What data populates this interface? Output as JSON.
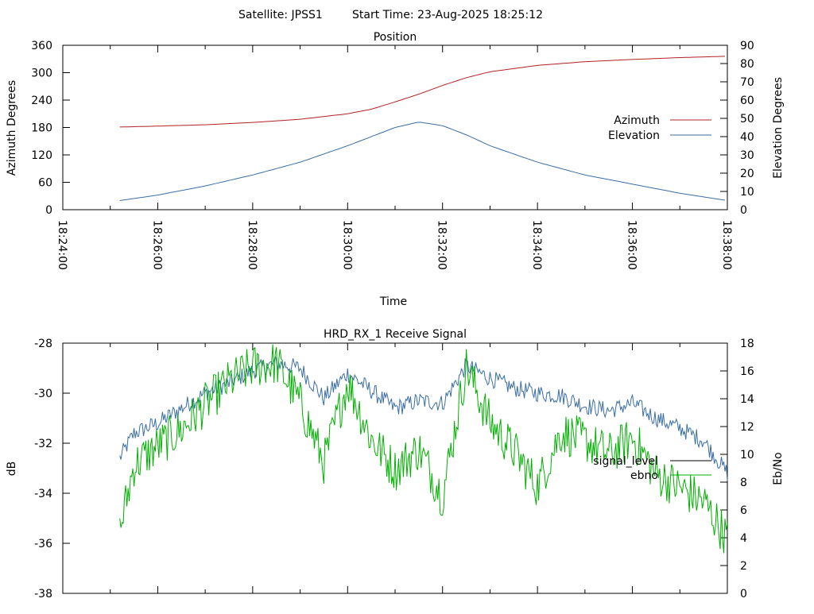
{
  "header": {
    "satellite": "Satellite: JPSS1",
    "start_time": "Start Time: 23-Aug-2025 18:25:12"
  },
  "chart_data": [
    {
      "type": "line",
      "title": "Position",
      "xlabel": "Time",
      "ylabel": "Azimuth Degrees",
      "y2label": "Elevation Degrees",
      "xlim": [
        "18:24:00",
        "18:38:00"
      ],
      "ylim": [
        0,
        360
      ],
      "y2lim": [
        0,
        90
      ],
      "x_ticks": [
        "18:24:00",
        "18:26:00",
        "18:28:00",
        "18:30:00",
        "18:32:00",
        "18:34:00",
        "18:36:00",
        "18:38:00"
      ],
      "y_ticks": [
        "0",
        "60",
        "120",
        "180",
        "240",
        "300",
        "360"
      ],
      "y2_ticks": [
        "0",
        "10",
        "20",
        "30",
        "40",
        "50",
        "60",
        "70",
        "80",
        "90"
      ],
      "grid": false,
      "legend_position": "right",
      "series": [
        {
          "name": "Azimuth",
          "color": "#b22222",
          "axis": "y",
          "x": [
            "18:25:12",
            "18:26:00",
            "18:27:00",
            "18:28:00",
            "18:29:00",
            "18:30:00",
            "18:30:30",
            "18:31:00",
            "18:31:30",
            "18:32:00",
            "18:32:30",
            "18:33:00",
            "18:34:00",
            "18:35:00",
            "18:36:00",
            "18:37:00",
            "18:38:00"
          ],
          "values": [
            181,
            183,
            186,
            191,
            198,
            210,
            220,
            236,
            253,
            272,
            289,
            302,
            316,
            324,
            329,
            333,
            336
          ]
        },
        {
          "name": "Elevation",
          "color": "#3a6ea5",
          "axis": "y2",
          "x": [
            "18:25:12",
            "18:26:00",
            "18:27:00",
            "18:28:00",
            "18:29:00",
            "18:30:00",
            "18:30:30",
            "18:31:00",
            "18:31:30",
            "18:32:00",
            "18:32:30",
            "18:33:00",
            "18:34:00",
            "18:35:00",
            "18:36:00",
            "18:37:00",
            "18:38:00"
          ],
          "values": [
            5,
            8,
            13,
            19,
            26,
            35,
            40,
            45,
            48,
            46,
            41,
            35,
            26,
            19,
            14,
            9,
            5
          ]
        }
      ]
    },
    {
      "type": "line",
      "title": "HRD_RX_1 Receive Signal",
      "xlabel": "",
      "ylabel": "dB",
      "y2label": "Eb/No",
      "xlim": [
        "18:24:00",
        "18:38:00"
      ],
      "ylim": [
        -38,
        -28
      ],
      "y2lim": [
        0,
        18
      ],
      "y_ticks": [
        "-38",
        "-36",
        "-34",
        "-32",
        "-30",
        "-28"
      ],
      "y2_ticks": [
        "0",
        "2",
        "4",
        "6",
        "8",
        "10",
        "12",
        "14",
        "16",
        "18"
      ],
      "grid": false,
      "legend_position": "right",
      "series": [
        {
          "name": "signal_level",
          "color": "#3a6ea5",
          "axis": "y",
          "x": [
            "18:25:12",
            "18:25:30",
            "18:26:00",
            "18:26:30",
            "18:27:00",
            "18:27:30",
            "18:28:00",
            "18:28:30",
            "18:29:00",
            "18:29:30",
            "18:30:00",
            "18:30:30",
            "18:31:00",
            "18:31:30",
            "18:32:00",
            "18:32:30",
            "18:33:00",
            "18:33:30",
            "18:34:00",
            "18:34:30",
            "18:35:00",
            "18:35:30",
            "18:36:00",
            "18:36:30",
            "18:37:00",
            "18:37:30",
            "18:38:00"
          ],
          "values": [
            -32.6,
            -31.6,
            -31.2,
            -30.6,
            -30.0,
            -29.6,
            -29.1,
            -28.8,
            -29.0,
            -30.2,
            -29.2,
            -29.9,
            -30.6,
            -30.3,
            -30.4,
            -28.9,
            -29.4,
            -29.8,
            -30.0,
            -30.1,
            -30.5,
            -30.7,
            -30.4,
            -31.0,
            -31.4,
            -31.9,
            -33.2
          ]
        },
        {
          "name": "ebno",
          "color": "#00b000",
          "axis": "y2",
          "x": [
            "18:25:12",
            "18:25:30",
            "18:26:00",
            "18:26:30",
            "18:27:00",
            "18:27:30",
            "18:28:00",
            "18:28:30",
            "18:29:00",
            "18:29:30",
            "18:30:00",
            "18:30:30",
            "18:31:00",
            "18:31:30",
            "18:32:00",
            "18:32:30",
            "18:33:00",
            "18:33:30",
            "18:34:00",
            "18:34:30",
            "18:35:00",
            "18:35:30",
            "18:36:00",
            "18:36:30",
            "18:37:00",
            "18:37:30",
            "18:38:00"
          ],
          "values": [
            4.5,
            9.2,
            10.6,
            11.8,
            13.6,
            15.2,
            16.3,
            16.6,
            13.7,
            9.4,
            15.2,
            11.1,
            8.9,
            10.4,
            7.0,
            16.3,
            12.3,
            10.3,
            7.7,
            11.6,
            11.0,
            10.0,
            11.2,
            8.6,
            7.6,
            6.6,
            4.0
          ]
        }
      ]
    }
  ]
}
